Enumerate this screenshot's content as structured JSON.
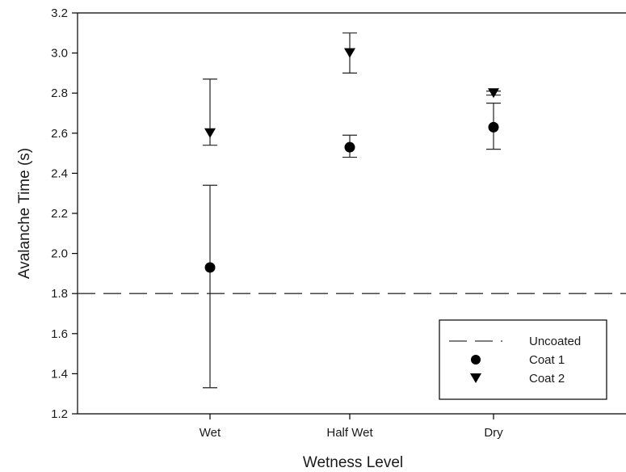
{
  "chart_data": {
    "type": "scatter",
    "xlabel": "Wetness Level",
    "ylabel": "Avalanche Time (s)",
    "categories": [
      "Wet",
      "Half Wet",
      "Dry"
    ],
    "ylim": [
      1.2,
      3.2
    ],
    "yticks": [
      "1.2",
      "1.4",
      "1.6",
      "1.8",
      "2.0",
      "2.2",
      "2.4",
      "2.6",
      "2.8",
      "3.0",
      "3.2"
    ],
    "grid": false,
    "legend": {
      "position": "bottom-right",
      "entries": [
        "Uncoated",
        "Coat 1",
        "Coat 2"
      ]
    },
    "series": [
      {
        "name": "Uncoated",
        "style": "dashed-line",
        "values": [
          1.8,
          1.8,
          1.8
        ]
      },
      {
        "name": "Coat 1",
        "marker": "circle",
        "values": [
          1.93,
          2.53,
          2.63
        ],
        "error_low": [
          1.33,
          2.48,
          2.52
        ],
        "error_high": [
          2.34,
          2.59,
          2.75
        ]
      },
      {
        "name": "Coat 2",
        "marker": "triangle-down",
        "values": [
          2.6,
          3.0,
          2.8
        ],
        "error_low": [
          2.54,
          2.9,
          2.79
        ],
        "error_high": [
          2.87,
          3.1,
          2.81
        ]
      }
    ]
  }
}
